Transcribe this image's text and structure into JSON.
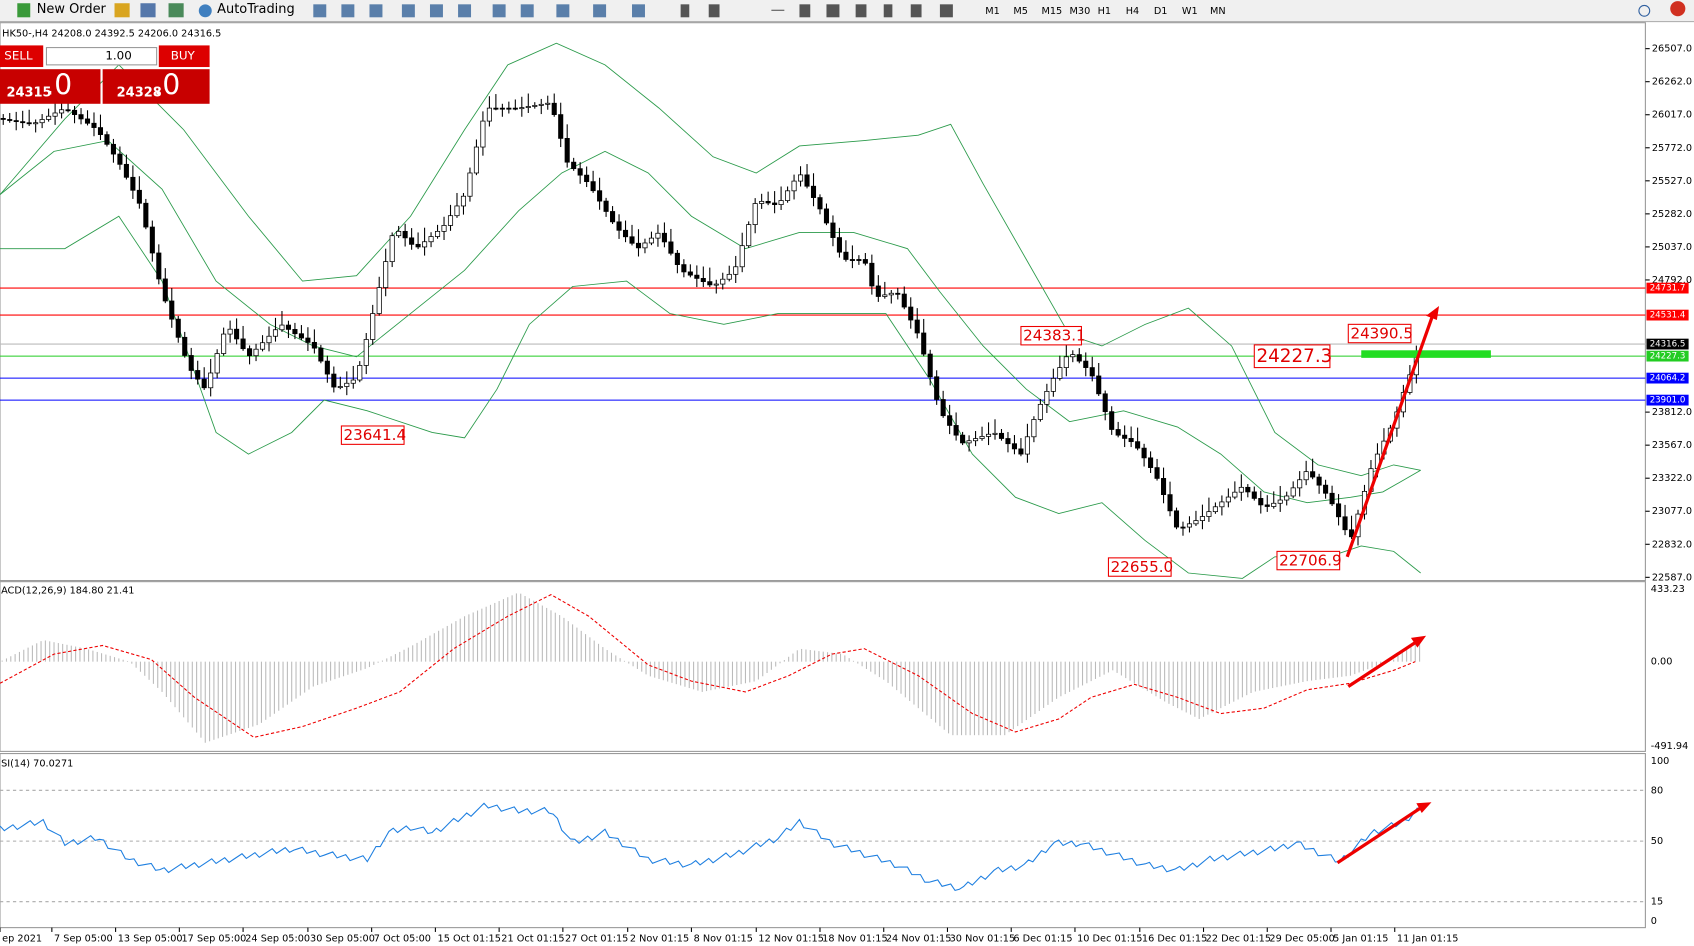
{
  "toolbar": {
    "new_order": "New Order",
    "auto_trading": "AutoTrading",
    "timeframes": [
      "M1",
      "M5",
      "M15",
      "M30",
      "H1",
      "H4",
      "D1",
      "W1",
      "MN"
    ]
  },
  "chart_header": "HK50-,H4  24208.0 24392.5 24206.0 24316.5",
  "trade_panel": {
    "sell": "SELL",
    "lot": "1.00",
    "buy": "BUY",
    "sell_price": "24315",
    "sell_frac": ".0",
    "buy_price": "24328",
    "buy_frac": ".0"
  },
  "price_axis": [
    "26507.0",
    "26262.0",
    "26017.0",
    "25772.0",
    "25527.0",
    "25282.0",
    "25037.0",
    "24792.0",
    "23812.0",
    "23567.0",
    "23322.0",
    "23077.0",
    "22832.0",
    "22587.0"
  ],
  "levels": [
    {
      "label": "24731.7",
      "color": "#ff0000"
    },
    {
      "label": "24531.4",
      "color": "#ff0000"
    },
    {
      "label": "24316.5",
      "color": "#000000"
    },
    {
      "label": "24227.3",
      "color": "#22cc22"
    },
    {
      "label": "24064.2",
      "color": "#0000ff"
    },
    {
      "label": "23901.0",
      "color": "#0000ff"
    }
  ],
  "annotations": [
    "24383.1",
    "24227.3",
    "24390.5",
    "23641.4",
    "22655.0",
    "22706.9"
  ],
  "macd": {
    "title": "ACD(12,26,9) 184.80 21.41",
    "axis": [
      "433.23",
      "0.00",
      "-491.94"
    ]
  },
  "rsi": {
    "title": "SI(14) 70.0271",
    "axis": [
      "100",
      "80",
      "50",
      "15",
      "0"
    ]
  },
  "time_axis": [
    "ep 2021",
    "7 Sep 05:00",
    "13 Sep 05:00",
    "17 Sep 05:00",
    "24 Sep 05:00",
    "30 Sep 05:00",
    "7 Oct 05:00",
    "15 Oct 01:15",
    "21 Oct 01:15",
    "27 Oct 01:15",
    "2 Nov 01:15",
    "8 Nov 01:15",
    "12 Nov 01:15",
    "18 Nov 01:15",
    "24 Nov 01:15",
    "30 Nov 01:15",
    "6 Dec 01:15",
    "10 Dec 01:15",
    "16 Dec 01:15",
    "22 Dec 01:15",
    "29 Dec 05:00",
    "5 Jan 01:15",
    "11 Jan 01:15"
  ]
}
